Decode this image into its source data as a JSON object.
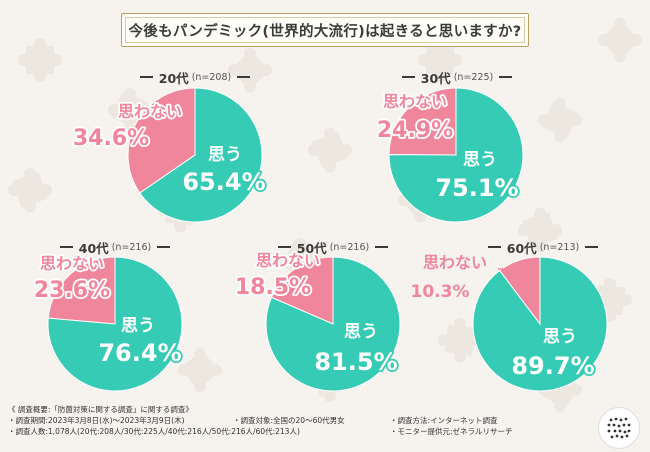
{
  "title": "今後もパンデミック(世界的大流行)は起きると思いますか?",
  "colors": {
    "yes": "#36cbb4",
    "no": "#f0869c",
    "yes_text": "#ffffff",
    "no_text": "#f0869c",
    "outline": "#ffffff"
  },
  "chart_data": [
    {
      "type": "pie",
      "group": "20代",
      "n_label": "(n=208)",
      "slices": [
        {
          "label": "思う",
          "value": 65.4,
          "value_label": "65.4%"
        },
        {
          "label": "思わない",
          "value": 34.6,
          "value_label": "34.6%"
        }
      ]
    },
    {
      "type": "pie",
      "group": "30代",
      "n_label": "(n=225)",
      "slices": [
        {
          "label": "思う",
          "value": 75.1,
          "value_label": "75.1%"
        },
        {
          "label": "思わない",
          "value": 24.9,
          "value_label": "24.9%"
        }
      ]
    },
    {
      "type": "pie",
      "group": "40代",
      "n_label": "(n=216)",
      "slices": [
        {
          "label": "思う",
          "value": 76.4,
          "value_label": "76.4%"
        },
        {
          "label": "思わない",
          "value": 23.6,
          "value_label": "23.6%"
        }
      ]
    },
    {
      "type": "pie",
      "group": "50代",
      "n_label": "(n=216)",
      "slices": [
        {
          "label": "思う",
          "value": 81.5,
          "value_label": "81.5%"
        },
        {
          "label": "思わない",
          "value": 18.5,
          "value_label": "18.5%"
        }
      ]
    },
    {
      "type": "pie",
      "group": "60代",
      "n_label": "(n=213)",
      "slices": [
        {
          "label": "思う",
          "value": 89.7,
          "value_label": "89.7%"
        },
        {
          "label": "思わない",
          "value": 10.3,
          "value_label": "10.3%"
        }
      ]
    }
  ],
  "footer": {
    "heading": "《 調査概要:「防菌対策に関する調査」に関する調査》",
    "period": "・調査期間:2023年3月8日(水)〜2023年3月9日(木)",
    "target": "・調査対象:全国の20〜60代男女",
    "method": "・調査方法:インターネット調査",
    "count": "・調査人数:1,078人(20代:208人/30代:225人/40代:216人/50代:216人/60代:213人)",
    "provider": "・モニター提供元:ゼネラルリサーチ"
  }
}
